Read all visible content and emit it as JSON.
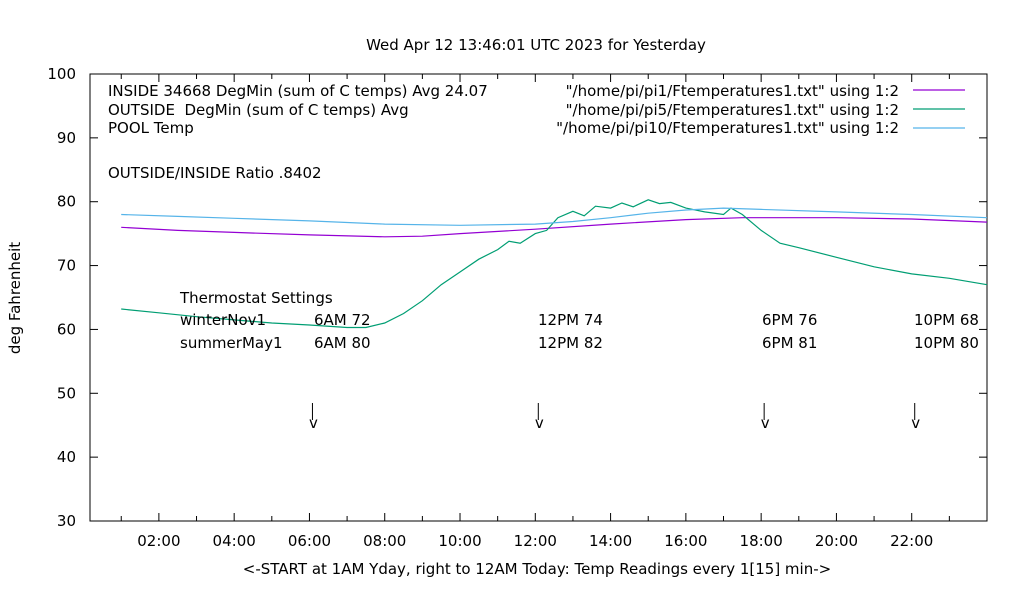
{
  "chart_data": {
    "type": "line",
    "title": "Wed Apr 12 13:46:01 UTC 2023 for Yesterday",
    "xlabel": "<-START at 1AM Yday, right to 12AM Today:  Temp Readings every 1[15] min->",
    "ylabel": "deg Fahrenheit",
    "ylim": [
      30,
      100
    ],
    "xlim_hours": [
      0.17,
      24
    ],
    "yticks": [
      30,
      40,
      50,
      60,
      70,
      80,
      90,
      100
    ],
    "xticks": [
      {
        "h": 2,
        "label": "02:00"
      },
      {
        "h": 4,
        "label": "04:00"
      },
      {
        "h": 6,
        "label": "06:00"
      },
      {
        "h": 8,
        "label": "08:00"
      },
      {
        "h": 10,
        "label": "10:00"
      },
      {
        "h": 12,
        "label": "12:00"
      },
      {
        "h": 14,
        "label": "14:00"
      },
      {
        "h": 16,
        "label": "16:00"
      },
      {
        "h": 18,
        "label": "18:00"
      },
      {
        "h": 20,
        "label": "20:00"
      },
      {
        "h": 22,
        "label": "22:00"
      }
    ],
    "grid": false,
    "legend_position": "top",
    "series": [
      {
        "name": "INSIDE 34668 DegMin (sum of C temps) Avg 24.07",
        "source": "\"/home/pi/pi1/Ftemperatures1.txt\" using 1:2",
        "color": "#9400d3",
        "points": [
          [
            1,
            76
          ],
          [
            2.5,
            75.5
          ],
          [
            4,
            75.2
          ],
          [
            6,
            74.8
          ],
          [
            8,
            74.5
          ],
          [
            9,
            74.6
          ],
          [
            10,
            75
          ],
          [
            12,
            75.7
          ],
          [
            14,
            76.5
          ],
          [
            16,
            77.2
          ],
          [
            17.5,
            77.5
          ],
          [
            20,
            77.5
          ],
          [
            22,
            77.3
          ],
          [
            24,
            76.8
          ]
        ]
      },
      {
        "name": "OUTSIDE  DegMin (sum of C temps) Avg",
        "source": "\"/home/pi/pi5/Ftemperatures1.txt\" using 1:2",
        "color": "#009e73",
        "points": [
          [
            1,
            63.2
          ],
          [
            2,
            62.6
          ],
          [
            3,
            62
          ],
          [
            4,
            61.5
          ],
          [
            5,
            61
          ],
          [
            6,
            60.7
          ],
          [
            7,
            60.3
          ],
          [
            7.5,
            60.3
          ],
          [
            8,
            61
          ],
          [
            8.5,
            62.5
          ],
          [
            9,
            64.5
          ],
          [
            9.5,
            67
          ],
          [
            10,
            69
          ],
          [
            10.5,
            71
          ],
          [
            11,
            72.5
          ],
          [
            11.3,
            73.8
          ],
          [
            11.6,
            73.5
          ],
          [
            12,
            75
          ],
          [
            12.3,
            75.5
          ],
          [
            12.6,
            77.5
          ],
          [
            13,
            78.5
          ],
          [
            13.3,
            77.8
          ],
          [
            13.6,
            79.3
          ],
          [
            14,
            79
          ],
          [
            14.3,
            79.8
          ],
          [
            14.6,
            79.2
          ],
          [
            15,
            80.3
          ],
          [
            15.3,
            79.7
          ],
          [
            15.6,
            79.9
          ],
          [
            16,
            79
          ],
          [
            16.5,
            78.4
          ],
          [
            17,
            78
          ],
          [
            17.2,
            79
          ],
          [
            17.5,
            78
          ],
          [
            18,
            75.5
          ],
          [
            18.5,
            73.5
          ],
          [
            19,
            72.8
          ],
          [
            20,
            71.3
          ],
          [
            21,
            69.8
          ],
          [
            22,
            68.7
          ],
          [
            23,
            68
          ],
          [
            24,
            67
          ]
        ]
      },
      {
        "name": "POOL Temp",
        "source": "\"/home/pi/pi10/Ftemperatures1.txt\" using 1:2",
        "color": "#56b4e9",
        "points": [
          [
            1,
            78
          ],
          [
            2.5,
            77.7
          ],
          [
            4,
            77.4
          ],
          [
            6,
            77
          ],
          [
            8,
            76.5
          ],
          [
            10,
            76.3
          ],
          [
            12,
            76.5
          ],
          [
            13,
            76.9
          ],
          [
            14,
            77.5
          ],
          [
            15,
            78.2
          ],
          [
            16,
            78.7
          ],
          [
            17,
            79
          ],
          [
            18,
            78.8
          ],
          [
            20,
            78.4
          ],
          [
            22,
            78
          ],
          [
            24,
            77.5
          ]
        ]
      }
    ],
    "annotations": {
      "ratio": "OUTSIDE/INSIDE Ratio .8402",
      "thermostat_title": "Thermostat Settings",
      "rows": [
        {
          "label": "winterNov1",
          "values": [
            "6AM 72",
            "12PM 74",
            "6PM 76",
            "10PM 68"
          ]
        },
        {
          "label": "summerMay1",
          "values": [
            "6AM 80",
            "12PM 82",
            "6PM 81",
            "10PM 80"
          ]
        }
      ],
      "arrow_hours": [
        6,
        12,
        18,
        22
      ],
      "arrow_glyph": "v"
    }
  }
}
